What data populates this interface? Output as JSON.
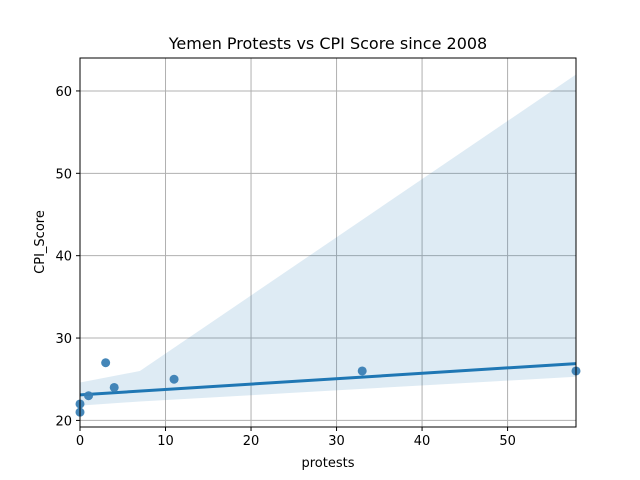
{
  "chart_data": {
    "type": "scatter",
    "title": "Yemen Protests vs CPI Score since 2008",
    "xlabel": "protests",
    "ylabel": "CPI_Score",
    "xlim": [
      0,
      58
    ],
    "ylim": [
      19.2,
      64
    ],
    "xticks": [
      0,
      10,
      20,
      30,
      40,
      50
    ],
    "yticks": [
      20,
      30,
      40,
      50,
      60
    ],
    "grid": true,
    "points": [
      {
        "x": 0,
        "y": 21
      },
      {
        "x": 0,
        "y": 22
      },
      {
        "x": 1,
        "y": 23
      },
      {
        "x": 3,
        "y": 27
      },
      {
        "x": 4,
        "y": 24
      },
      {
        "x": 11,
        "y": 25
      },
      {
        "x": 33,
        "y": 26
      },
      {
        "x": 58,
        "y": 26
      }
    ],
    "regression": {
      "x": [
        0,
        58
      ],
      "y": [
        23.1,
        26.9
      ]
    },
    "confidence_band": {
      "x": [
        0,
        7,
        58
      ],
      "upper": [
        24.6,
        26.0,
        62.0
      ],
      "lower": [
        21.8,
        22.3,
        25.3
      ]
    },
    "colors": {
      "points": "#3a7fb4",
      "line": "#1f77b4",
      "band": "#1f77b4",
      "grid": "#b0b0b0"
    }
  }
}
